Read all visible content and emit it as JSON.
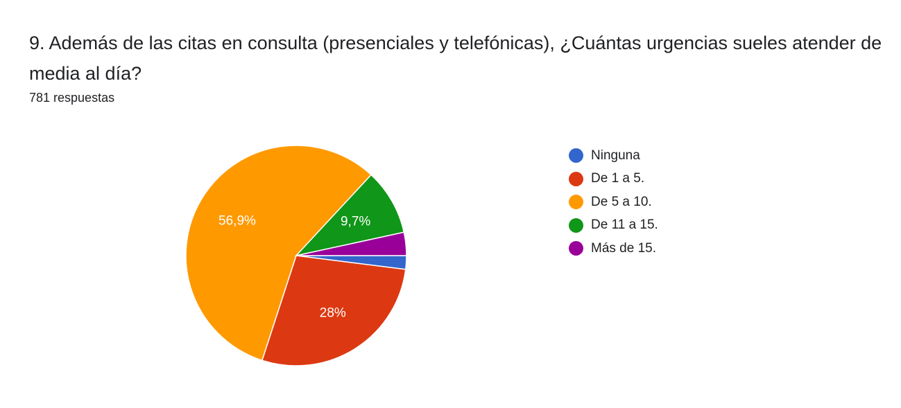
{
  "question": {
    "title": "9. Además de las citas en consulta (presenciales y telefónicas), ¿Cuántas urgencias sueles atender de media al día?",
    "response_count": "781 respuestas"
  },
  "chart_data": {
    "type": "pie",
    "title": "",
    "legend_position": "right",
    "slices": [
      {
        "label": "Ninguna",
        "percent": 2.0,
        "color": "#3366cc",
        "data_label": ""
      },
      {
        "label": "De 1 a 5.",
        "percent": 28.0,
        "color": "#dc3912",
        "data_label": "28%"
      },
      {
        "label": "De 5 a 10.",
        "percent": 56.9,
        "color": "#ff9900",
        "data_label": "56,9%"
      },
      {
        "label": "De 11 a 15.",
        "percent": 9.7,
        "color": "#109618",
        "data_label": "9,7%"
      },
      {
        "label": "Más de 15.",
        "percent": 3.4,
        "color": "#990099",
        "data_label": ""
      }
    ]
  }
}
